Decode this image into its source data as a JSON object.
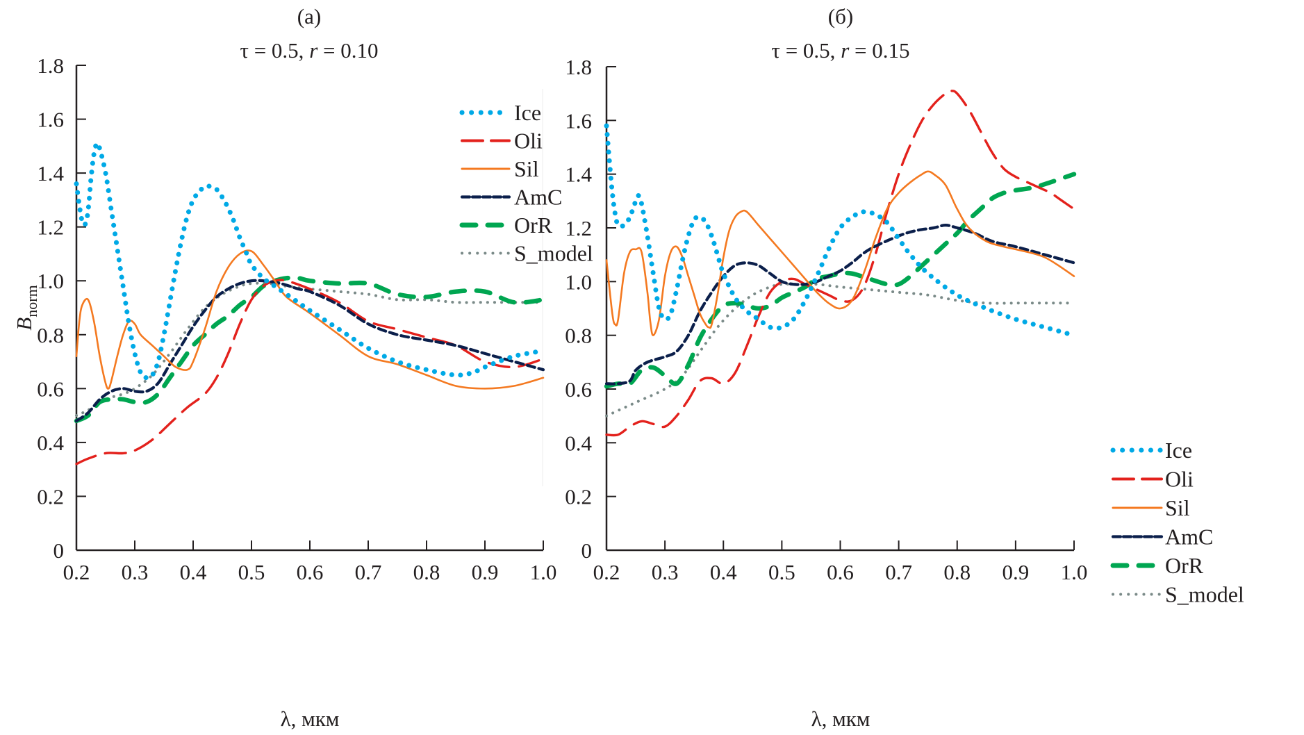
{
  "chart_data": [
    {
      "type": "line",
      "panel_label": "(a)",
      "title": "τ = 0.5, r = 0.10",
      "title_parts": {
        "tau": "τ = 0.5, ",
        "r_symbol": "r",
        "r_value": " = 0.10"
      },
      "xlabel": "λ, мкм",
      "ylabel": "B",
      "ylabel_subscript": "norm",
      "xlim": [
        0.2,
        1.0
      ],
      "ylim": [
        0,
        1.8
      ],
      "xticks": [
        "0.2",
        "0.3",
        "0.4",
        "0.5",
        "0.6",
        "0.7",
        "0.8",
        "0.9",
        "1.0"
      ],
      "yticks": [
        "0",
        "0.2",
        "0.4",
        "0.6",
        "0.8",
        "1.0",
        "1.2",
        "1.4",
        "1.6",
        "1.8"
      ],
      "grid": false,
      "legend_position": "top-right",
      "series": [
        {
          "name": "Ice",
          "color": "#00a9e6",
          "style": "dotted-thick",
          "x": [
            0.2,
            0.205,
            0.21,
            0.215,
            0.22,
            0.225,
            0.23,
            0.235,
            0.24,
            0.25,
            0.26,
            0.27,
            0.28,
            0.29,
            0.3,
            0.31,
            0.32,
            0.33,
            0.34,
            0.35,
            0.36,
            0.37,
            0.38,
            0.39,
            0.4,
            0.41,
            0.42,
            0.43,
            0.44,
            0.45,
            0.46,
            0.47,
            0.48,
            0.49,
            0.5,
            0.52,
            0.54,
            0.56,
            0.58,
            0.6,
            0.65,
            0.7,
            0.75,
            0.8,
            0.85,
            0.88,
            0.9,
            0.95,
            1.0
          ],
          "y": [
            1.36,
            1.28,
            1.22,
            1.21,
            1.26,
            1.38,
            1.47,
            1.51,
            1.49,
            1.4,
            1.26,
            1.12,
            0.98,
            0.84,
            0.73,
            0.66,
            0.64,
            0.65,
            0.7,
            0.8,
            0.92,
            1.04,
            1.15,
            1.24,
            1.3,
            1.33,
            1.35,
            1.35,
            1.34,
            1.31,
            1.27,
            1.22,
            1.16,
            1.11,
            1.06,
            1.01,
            0.98,
            0.95,
            0.92,
            0.89,
            0.82,
            0.75,
            0.7,
            0.67,
            0.65,
            0.66,
            0.68,
            0.72,
            0.74
          ]
        },
        {
          "name": "Oli",
          "color": "#e3211c",
          "style": "long-dash",
          "x": [
            0.2,
            0.22,
            0.25,
            0.28,
            0.3,
            0.33,
            0.36,
            0.39,
            0.42,
            0.44,
            0.46,
            0.48,
            0.5,
            0.52,
            0.54,
            0.56,
            0.6,
            0.65,
            0.7,
            0.75,
            0.8,
            0.85,
            0.9,
            0.95,
            1.0
          ],
          "y": [
            0.32,
            0.34,
            0.36,
            0.36,
            0.37,
            0.41,
            0.47,
            0.53,
            0.58,
            0.64,
            0.73,
            0.84,
            0.93,
            0.98,
            1.0,
            1.0,
            0.97,
            0.92,
            0.85,
            0.82,
            0.79,
            0.76,
            0.7,
            0.68,
            0.71
          ]
        },
        {
          "name": "Sil",
          "color": "#f47920",
          "style": "solid",
          "x": [
            0.2,
            0.205,
            0.21,
            0.22,
            0.23,
            0.24,
            0.25,
            0.255,
            0.26,
            0.27,
            0.28,
            0.29,
            0.3,
            0.31,
            0.33,
            0.35,
            0.37,
            0.39,
            0.4,
            0.42,
            0.44,
            0.46,
            0.48,
            0.5,
            0.52,
            0.54,
            0.56,
            0.6,
            0.65,
            0.7,
            0.75,
            0.8,
            0.85,
            0.9,
            0.95,
            1.0
          ],
          "y": [
            0.72,
            0.85,
            0.91,
            0.93,
            0.85,
            0.72,
            0.62,
            0.6,
            0.63,
            0.72,
            0.8,
            0.85,
            0.84,
            0.8,
            0.76,
            0.72,
            0.68,
            0.67,
            0.7,
            0.82,
            0.96,
            1.05,
            1.1,
            1.11,
            1.06,
            1.0,
            0.94,
            0.88,
            0.8,
            0.72,
            0.69,
            0.65,
            0.61,
            0.6,
            0.61,
            0.64
          ]
        },
        {
          "name": "AmC",
          "color": "#0b1f4b",
          "style": "short-dash",
          "x": [
            0.2,
            0.22,
            0.24,
            0.26,
            0.28,
            0.3,
            0.32,
            0.34,
            0.36,
            0.38,
            0.4,
            0.42,
            0.44,
            0.46,
            0.48,
            0.5,
            0.52,
            0.55,
            0.58,
            0.6,
            0.65,
            0.7,
            0.75,
            0.8,
            0.85,
            0.9,
            0.95,
            1.0
          ],
          "y": [
            0.48,
            0.51,
            0.56,
            0.59,
            0.6,
            0.59,
            0.59,
            0.62,
            0.69,
            0.76,
            0.83,
            0.89,
            0.94,
            0.97,
            0.99,
            1.0,
            1.0,
            0.99,
            0.97,
            0.96,
            0.91,
            0.84,
            0.8,
            0.78,
            0.76,
            0.73,
            0.7,
            0.67
          ]
        },
        {
          "name": "OrR",
          "color": "#00a651",
          "style": "dash-thick",
          "x": [
            0.2,
            0.22,
            0.24,
            0.26,
            0.28,
            0.3,
            0.32,
            0.34,
            0.36,
            0.38,
            0.4,
            0.42,
            0.44,
            0.46,
            0.48,
            0.5,
            0.52,
            0.54,
            0.56,
            0.58,
            0.6,
            0.65,
            0.7,
            0.75,
            0.8,
            0.85,
            0.9,
            0.95,
            1.0
          ],
          "y": [
            0.48,
            0.5,
            0.55,
            0.56,
            0.56,
            0.55,
            0.55,
            0.58,
            0.64,
            0.7,
            0.76,
            0.8,
            0.84,
            0.87,
            0.91,
            0.94,
            0.98,
            1.0,
            1.01,
            1.01,
            1.0,
            0.99,
            0.99,
            0.95,
            0.94,
            0.96,
            0.96,
            0.92,
            0.93
          ]
        },
        {
          "name": "S_model",
          "color": "#7a8a88",
          "style": "dotted-thin",
          "x": [
            0.2,
            0.22,
            0.25,
            0.28,
            0.3,
            0.33,
            0.36,
            0.39,
            0.42,
            0.45,
            0.48,
            0.5,
            0.53,
            0.56,
            0.6,
            0.65,
            0.7,
            0.75,
            0.8,
            0.85,
            0.9,
            0.95,
            1.0
          ],
          "y": [
            0.5,
            0.52,
            0.56,
            0.58,
            0.6,
            0.65,
            0.73,
            0.82,
            0.9,
            0.95,
            0.98,
            0.99,
            0.99,
            0.98,
            0.97,
            0.96,
            0.95,
            0.93,
            0.93,
            0.92,
            0.92,
            0.92,
            0.92
          ]
        }
      ]
    },
    {
      "type": "line",
      "panel_label": "(б)",
      "title": "τ = 0.5, r = 0.15",
      "title_parts": {
        "tau": "τ = 0.5, ",
        "r_symbol": "r",
        "r_value": " = 0.15"
      },
      "xlabel": "λ, мкм",
      "ylabel": "",
      "xlim": [
        0.2,
        1.0
      ],
      "ylim": [
        0,
        1.8
      ],
      "xticks": [
        "0.2",
        "0.3",
        "0.4",
        "0.5",
        "0.6",
        "0.7",
        "0.8",
        "0.9",
        "1.0"
      ],
      "yticks": [
        "0",
        "0.2",
        "0.4",
        "0.6",
        "0.8",
        "1.0",
        "1.2",
        "1.4",
        "1.6",
        "1.8"
      ],
      "grid": false,
      "legend_position": "bottom-right",
      "series": [
        {
          "name": "Ice",
          "color": "#00a9e6",
          "style": "dotted-thick",
          "x": [
            0.2,
            0.205,
            0.21,
            0.215,
            0.22,
            0.23,
            0.24,
            0.25,
            0.255,
            0.26,
            0.27,
            0.28,
            0.29,
            0.3,
            0.31,
            0.32,
            0.33,
            0.34,
            0.35,
            0.36,
            0.37,
            0.38,
            0.39,
            0.4,
            0.42,
            0.44,
            0.46,
            0.48,
            0.5,
            0.52,
            0.54,
            0.56,
            0.58,
            0.6,
            0.62,
            0.64,
            0.66,
            0.68,
            0.7,
            0.72,
            0.75,
            0.8,
            0.85,
            0.9,
            0.95,
            1.0
          ],
          "y": [
            1.58,
            1.45,
            1.33,
            1.25,
            1.21,
            1.21,
            1.24,
            1.3,
            1.32,
            1.29,
            1.17,
            1.03,
            0.9,
            0.86,
            0.88,
            0.97,
            1.08,
            1.17,
            1.23,
            1.24,
            1.22,
            1.17,
            1.1,
            1.03,
            0.94,
            0.89,
            0.86,
            0.83,
            0.83,
            0.86,
            0.93,
            1.02,
            1.12,
            1.2,
            1.24,
            1.26,
            1.25,
            1.22,
            1.16,
            1.1,
            1.03,
            0.95,
            0.9,
            0.86,
            0.83,
            0.8
          ]
        },
        {
          "name": "Oli",
          "color": "#e3211c",
          "style": "long-dash",
          "x": [
            0.2,
            0.22,
            0.24,
            0.26,
            0.28,
            0.3,
            0.32,
            0.34,
            0.36,
            0.38,
            0.4,
            0.42,
            0.44,
            0.46,
            0.48,
            0.5,
            0.52,
            0.54,
            0.56,
            0.58,
            0.6,
            0.62,
            0.64,
            0.66,
            0.68,
            0.7,
            0.72,
            0.74,
            0.76,
            0.78,
            0.79,
            0.8,
            0.82,
            0.84,
            0.86,
            0.88,
            0.9,
            0.92,
            0.94,
            0.96,
            0.98,
            1.0
          ],
          "y": [
            0.43,
            0.43,
            0.46,
            0.48,
            0.47,
            0.46,
            0.5,
            0.56,
            0.63,
            0.64,
            0.62,
            0.66,
            0.76,
            0.87,
            0.96,
            1.0,
            1.01,
            0.99,
            0.97,
            0.95,
            0.93,
            0.93,
            0.98,
            1.1,
            1.26,
            1.4,
            1.51,
            1.6,
            1.66,
            1.7,
            1.71,
            1.7,
            1.64,
            1.56,
            1.48,
            1.42,
            1.39,
            1.37,
            1.35,
            1.33,
            1.3,
            1.27
          ]
        },
        {
          "name": "Sil",
          "color": "#f47920",
          "style": "solid",
          "x": [
            0.2,
            0.21,
            0.215,
            0.22,
            0.23,
            0.24,
            0.25,
            0.26,
            0.27,
            0.275,
            0.28,
            0.29,
            0.3,
            0.31,
            0.32,
            0.33,
            0.34,
            0.35,
            0.36,
            0.37,
            0.375,
            0.38,
            0.39,
            0.4,
            0.41,
            0.42,
            0.43,
            0.44,
            0.46,
            0.48,
            0.5,
            0.52,
            0.54,
            0.56,
            0.58,
            0.6,
            0.62,
            0.64,
            0.66,
            0.68,
            0.7,
            0.72,
            0.74,
            0.75,
            0.76,
            0.78,
            0.8,
            0.82,
            0.85,
            0.88,
            0.9,
            0.95,
            1.0
          ],
          "y": [
            1.08,
            0.88,
            0.84,
            0.86,
            1.03,
            1.11,
            1.12,
            1.11,
            0.96,
            0.85,
            0.8,
            0.86,
            1.02,
            1.11,
            1.13,
            1.09,
            1.02,
            0.95,
            0.88,
            0.84,
            0.83,
            0.84,
            0.95,
            1.09,
            1.19,
            1.24,
            1.26,
            1.26,
            1.21,
            1.16,
            1.11,
            1.06,
            1.01,
            0.96,
            0.92,
            0.9,
            0.93,
            1.03,
            1.16,
            1.27,
            1.33,
            1.37,
            1.4,
            1.41,
            1.4,
            1.36,
            1.27,
            1.2,
            1.15,
            1.13,
            1.12,
            1.09,
            1.02
          ]
        },
        {
          "name": "AmC",
          "color": "#0b1f4b",
          "style": "short-dash",
          "x": [
            0.2,
            0.22,
            0.24,
            0.25,
            0.27,
            0.3,
            0.32,
            0.34,
            0.36,
            0.38,
            0.4,
            0.42,
            0.44,
            0.46,
            0.48,
            0.5,
            0.52,
            0.54,
            0.56,
            0.58,
            0.6,
            0.62,
            0.65,
            0.7,
            0.73,
            0.76,
            0.78,
            0.8,
            0.83,
            0.86,
            0.9,
            0.95,
            1.0
          ],
          "y": [
            0.62,
            0.62,
            0.63,
            0.67,
            0.7,
            0.72,
            0.74,
            0.8,
            0.89,
            0.96,
            1.02,
            1.06,
            1.07,
            1.06,
            1.03,
            1.0,
            0.99,
            0.99,
            1.0,
            1.02,
            1.04,
            1.07,
            1.12,
            1.17,
            1.19,
            1.2,
            1.21,
            1.2,
            1.18,
            1.15,
            1.13,
            1.1,
            1.07
          ]
        },
        {
          "name": "OrR",
          "color": "#00a651",
          "style": "dash-thick",
          "x": [
            0.2,
            0.22,
            0.24,
            0.26,
            0.28,
            0.3,
            0.32,
            0.34,
            0.36,
            0.38,
            0.4,
            0.42,
            0.44,
            0.46,
            0.48,
            0.5,
            0.52,
            0.54,
            0.56,
            0.58,
            0.6,
            0.62,
            0.65,
            0.68,
            0.7,
            0.72,
            0.74,
            0.76,
            0.78,
            0.8,
            0.82,
            0.84,
            0.86,
            0.88,
            0.9,
            0.93,
            0.96,
            1.0
          ],
          "y": [
            0.61,
            0.62,
            0.62,
            0.67,
            0.68,
            0.65,
            0.62,
            0.69,
            0.79,
            0.86,
            0.91,
            0.92,
            0.91,
            0.9,
            0.91,
            0.94,
            0.96,
            0.98,
            1.01,
            1.02,
            1.03,
            1.03,
            1.01,
            0.99,
            0.99,
            1.02,
            1.06,
            1.1,
            1.14,
            1.18,
            1.23,
            1.27,
            1.31,
            1.33,
            1.34,
            1.35,
            1.37,
            1.4
          ]
        },
        {
          "name": "S_model",
          "color": "#7a8a88",
          "style": "dotted-thin",
          "x": [
            0.2,
            0.25,
            0.3,
            0.33,
            0.36,
            0.39,
            0.42,
            0.45,
            0.48,
            0.5,
            0.53,
            0.56,
            0.6,
            0.65,
            0.7,
            0.75,
            0.8,
            0.85,
            0.9,
            0.95,
            1.0
          ],
          "y": [
            0.5,
            0.55,
            0.6,
            0.65,
            0.74,
            0.83,
            0.9,
            0.95,
            0.98,
            0.99,
            0.99,
            0.99,
            0.98,
            0.97,
            0.96,
            0.95,
            0.93,
            0.92,
            0.92,
            0.92,
            0.92
          ]
        }
      ]
    }
  ]
}
